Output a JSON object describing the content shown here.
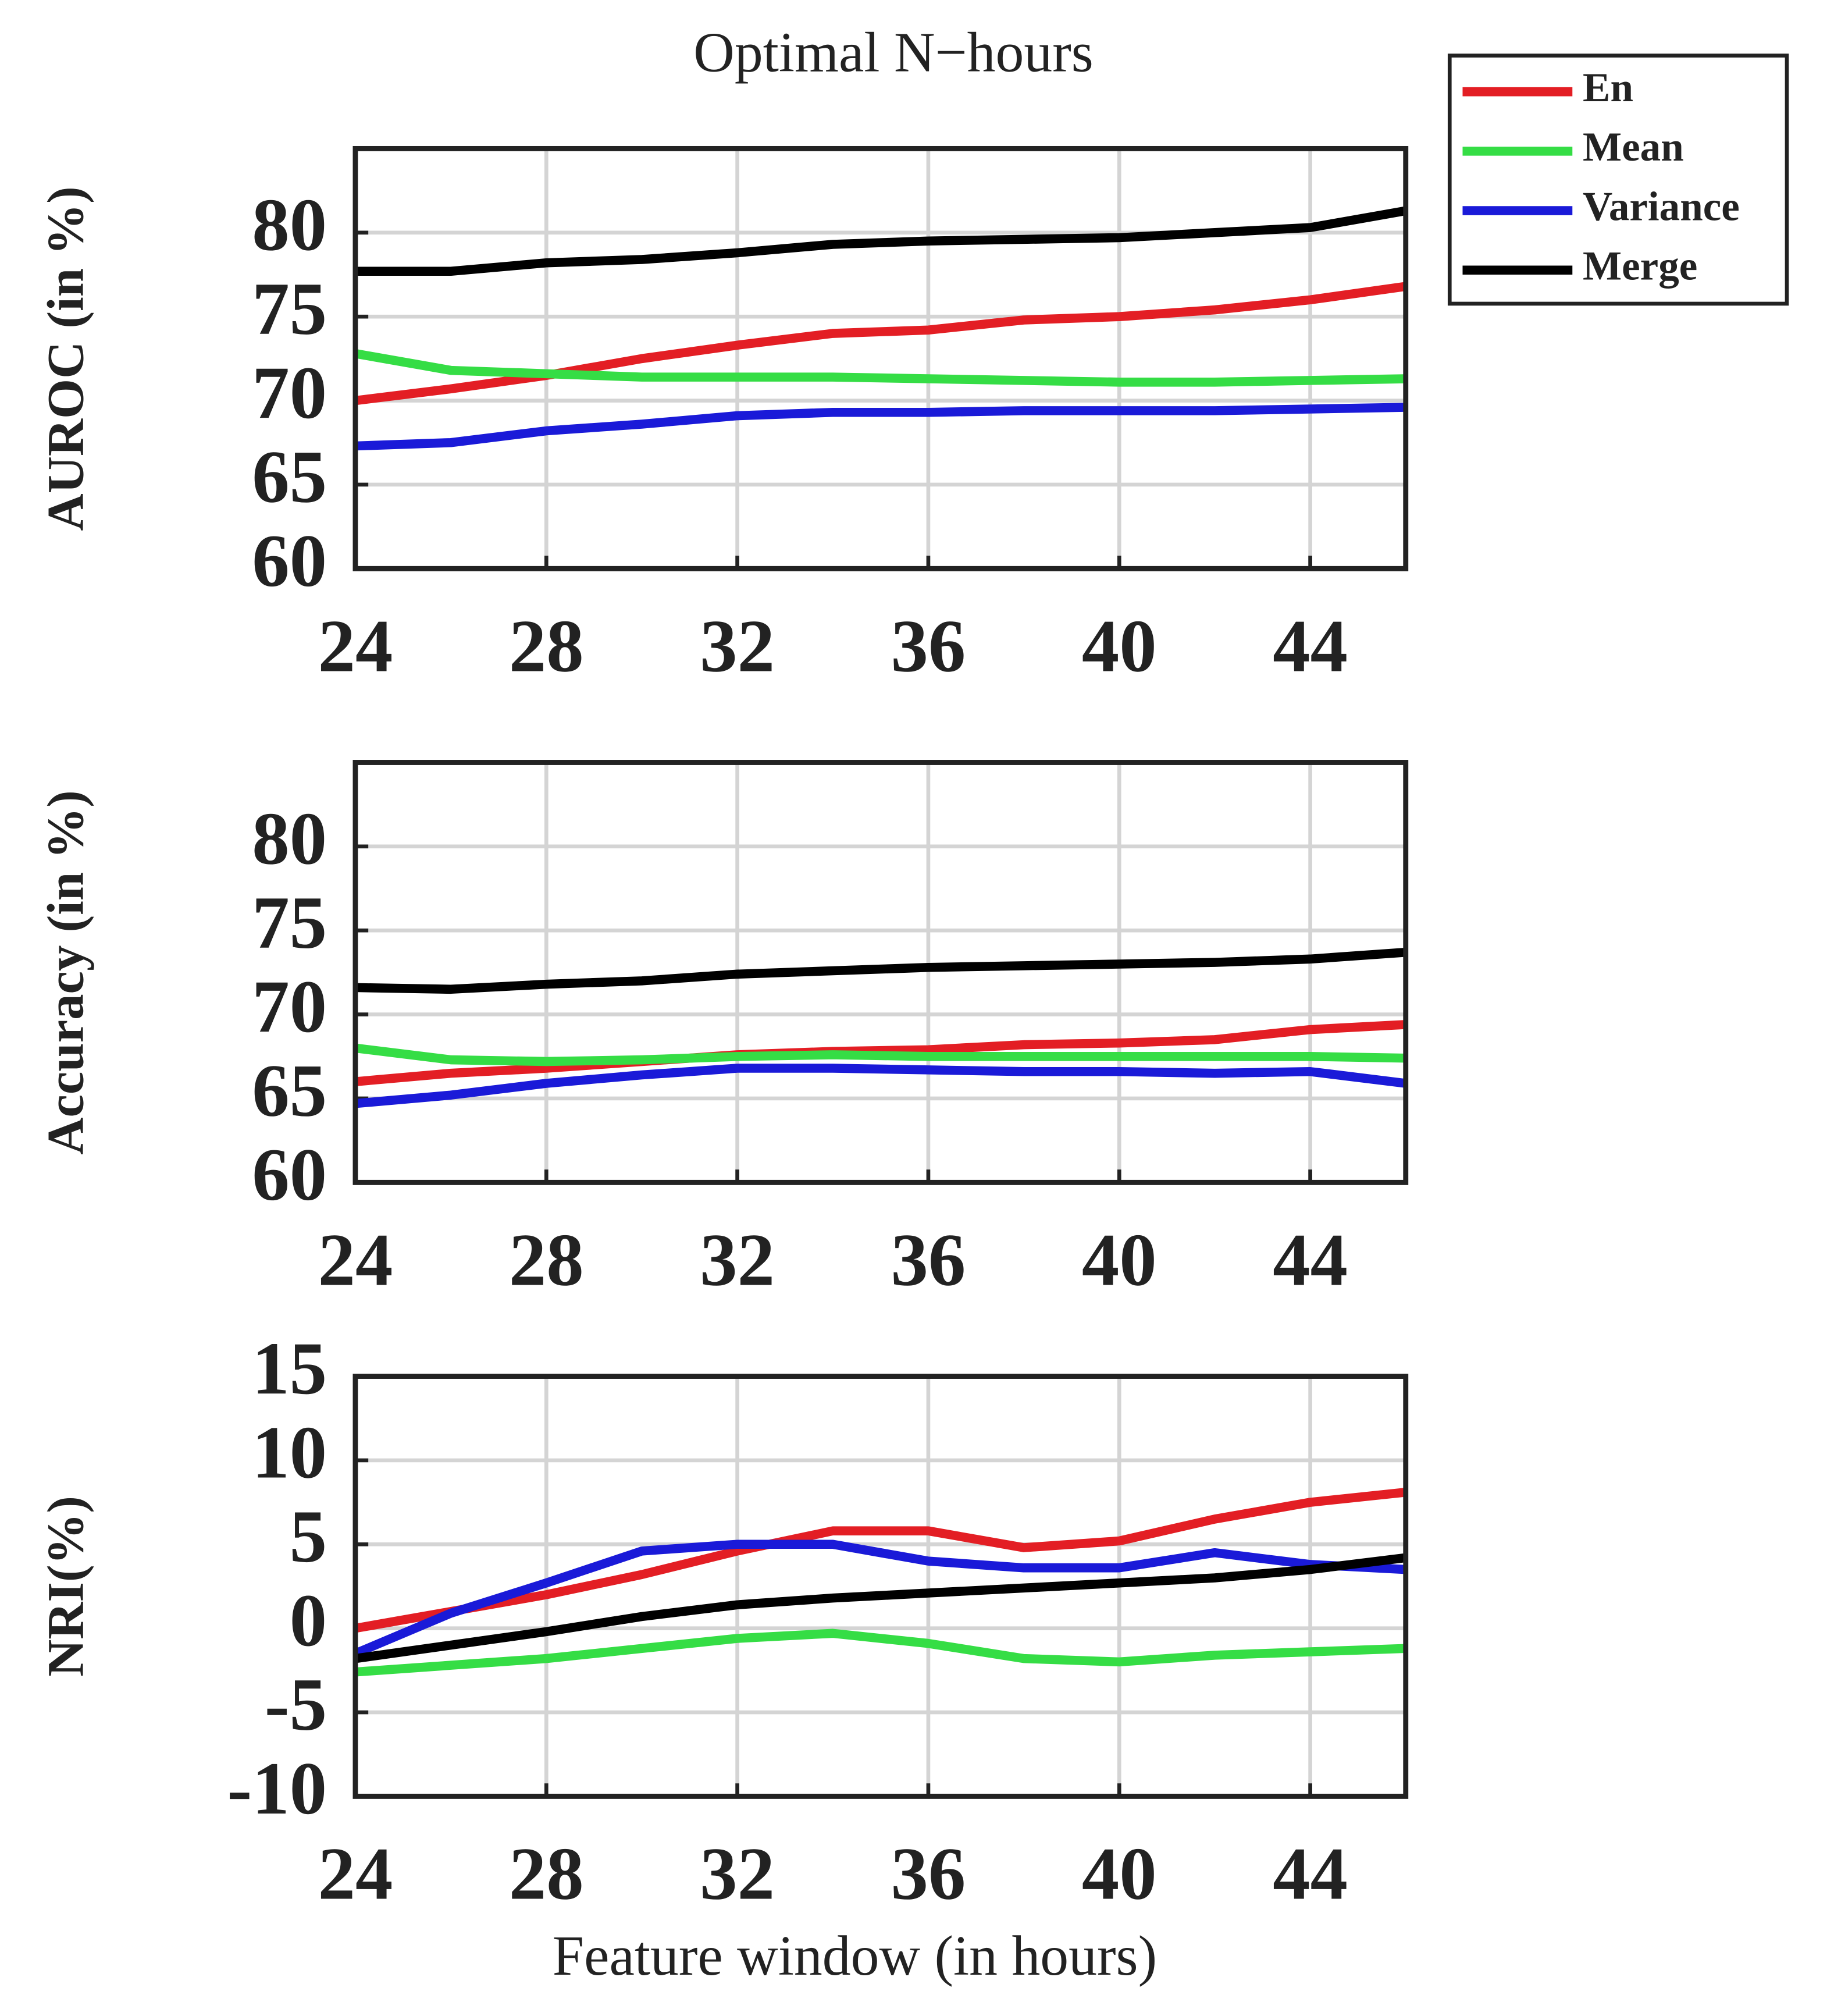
{
  "chart_data": [
    {
      "type": "line",
      "title": "Optimal N−hours",
      "ylabel": "AUROC (in %)",
      "x": [
        24,
        26,
        28,
        30,
        32,
        34,
        36,
        38,
        40,
        42,
        44,
        46
      ],
      "xlim": [
        24,
        46
      ],
      "xticks": [
        24,
        28,
        32,
        36,
        40,
        44
      ],
      "ylim": [
        60,
        85
      ],
      "yticks": [
        60,
        65,
        70,
        75,
        80
      ],
      "grid": true,
      "legend": "outside upper right",
      "series": [
        {
          "name": "En",
          "color": "#e31e24",
          "values": [
            70,
            70.7,
            71.5,
            72.5,
            73.3,
            74,
            74.2,
            74.8,
            75,
            75.4,
            76,
            76.8
          ]
        },
        {
          "name": "Mean",
          "color": "#35dd45",
          "values": [
            72.8,
            71.8,
            71.6,
            71.4,
            71.4,
            71.4,
            71.3,
            71.2,
            71.1,
            71.1,
            71.2,
            71.3
          ]
        },
        {
          "name": "Variance",
          "color": "#1a1ad8",
          "values": [
            67.3,
            67.5,
            68.2,
            68.6,
            69.1,
            69.3,
            69.3,
            69.4,
            69.4,
            69.4,
            69.5,
            69.6
          ]
        },
        {
          "name": "Merge",
          "color": "#000000",
          "values": [
            77.7,
            77.7,
            78.2,
            78.4,
            78.8,
            79.3,
            79.5,
            79.6,
            79.7,
            80,
            80.3,
            81.3
          ]
        }
      ]
    },
    {
      "type": "line",
      "ylabel": "Accuracy (in %)",
      "x": [
        24,
        26,
        28,
        30,
        32,
        34,
        36,
        38,
        40,
        42,
        44,
        46
      ],
      "xlim": [
        24,
        46
      ],
      "xticks": [
        24,
        28,
        32,
        36,
        40,
        44
      ],
      "ylim": [
        60,
        85
      ],
      "yticks": [
        60,
        65,
        70,
        75,
        80
      ],
      "grid": true,
      "series": [
        {
          "name": "En",
          "color": "#e31e24",
          "values": [
            66,
            66.5,
            66.8,
            67.2,
            67.6,
            67.8,
            67.9,
            68.2,
            68.3,
            68.5,
            69.1,
            69.4
          ]
        },
        {
          "name": "Mean",
          "color": "#35dd45",
          "values": [
            68,
            67.3,
            67.2,
            67.3,
            67.5,
            67.6,
            67.5,
            67.5,
            67.5,
            67.5,
            67.5,
            67.4
          ]
        },
        {
          "name": "Variance",
          "color": "#1a1ad8",
          "values": [
            64.7,
            65.2,
            65.9,
            66.4,
            66.8,
            66.8,
            66.7,
            66.6,
            66.6,
            66.5,
            66.6,
            65.9
          ]
        },
        {
          "name": "Merge",
          "color": "#000000",
          "values": [
            71.6,
            71.5,
            71.8,
            72,
            72.4,
            72.6,
            72.8,
            72.9,
            73,
            73.1,
            73.3,
            73.7
          ]
        }
      ]
    },
    {
      "type": "line",
      "ylabel": "NRI(%)",
      "xlabel": "Feature window (in hours)",
      "x": [
        24,
        26,
        28,
        30,
        32,
        34,
        36,
        38,
        40,
        42,
        44,
        46
      ],
      "xlim": [
        24,
        46
      ],
      "xticks": [
        24,
        28,
        32,
        36,
        40,
        44
      ],
      "ylim": [
        -10,
        15
      ],
      "yticks": [
        -10,
        -5,
        0,
        5,
        10,
        15
      ],
      "grid": true,
      "series": [
        {
          "name": "En",
          "color": "#e31e24",
          "values": [
            0,
            1,
            2,
            3.2,
            4.6,
            5.8,
            5.8,
            4.8,
            5.2,
            6.5,
            7.5,
            8.1
          ]
        },
        {
          "name": "Mean",
          "color": "#35dd45",
          "values": [
            -2.6,
            -2.2,
            -1.8,
            -1.2,
            -0.6,
            -0.3,
            -0.9,
            -1.8,
            -2,
            -1.6,
            -1.4,
            -1.2
          ]
        },
        {
          "name": "Variance",
          "color": "#1a1ad8",
          "values": [
            -1.5,
            0.9,
            2.7,
            4.6,
            5,
            5,
            4,
            3.6,
            3.6,
            4.5,
            3.8,
            3.5
          ]
        },
        {
          "name": "Merge",
          "color": "#000000",
          "values": [
            -1.8,
            -1,
            -0.2,
            0.7,
            1.4,
            1.8,
            2.1,
            2.4,
            2.7,
            3,
            3.5,
            4.2
          ]
        }
      ]
    }
  ]
}
